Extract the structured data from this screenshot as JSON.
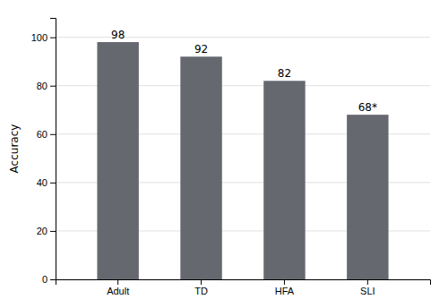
{
  "chart_data": {
    "type": "bar",
    "ylabel": "Accuracy",
    "categories": [
      "Adult",
      "TD",
      "HFA",
      "SLI"
    ],
    "values": [
      98,
      92,
      82,
      68
    ],
    "value_labels": [
      "98",
      "92",
      "82",
      "68*"
    ],
    "data_labels": true,
    "color": "#666870",
    "ylim": [
      0,
      108
    ],
    "yticks": [
      0,
      20,
      40,
      60,
      80,
      100
    ],
    "grid": true
  }
}
